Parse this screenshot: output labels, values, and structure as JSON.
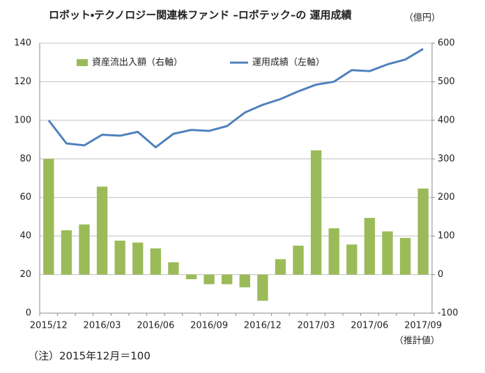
{
  "chart_data": {
    "type": "combo",
    "title": "ロボット・テクノロジー関連株ファンド –ロボテック–の 運用成績",
    "y2_unit": "（億円）",
    "note": "（注）2015年12月＝100",
    "estimate_label": "（推計値）",
    "categories": [
      "2015/12",
      null,
      null,
      "2016/03",
      null,
      null,
      "2016/06",
      null,
      null,
      "2016/09",
      null,
      null,
      "2016/12",
      null,
      null,
      "2017/03",
      null,
      null,
      "2017/06",
      null,
      null,
      "2017/09"
    ],
    "series": [
      {
        "name": "資産流出入額（右軸）",
        "type": "bar",
        "axis": "y2",
        "color": "#9bbb59",
        "values": [
          300,
          115,
          130,
          228,
          88,
          83,
          68,
          32,
          -12,
          -25,
          -25,
          -33,
          -68,
          40,
          75,
          322,
          120,
          78,
          147,
          112,
          95,
          223
        ]
      },
      {
        "name": "運用成績（左軸）",
        "type": "line",
        "color": "#4f81bd",
        "values": [
          100,
          88,
          87,
          92.5,
          92,
          94,
          86,
          93,
          95,
          94.5,
          97,
          104,
          108,
          111,
          115,
          118.5,
          120,
          126,
          125.5,
          129,
          131.5,
          137
        ]
      }
    ],
    "ylim": [
      0,
      140
    ],
    "yticks": [
      0,
      20,
      40,
      60,
      80,
      100,
      120,
      140
    ],
    "y2lim": [
      -100,
      600
    ],
    "y2ticks": [
      -100,
      0,
      100,
      200,
      300,
      400,
      500,
      600
    ],
    "grid": true
  }
}
